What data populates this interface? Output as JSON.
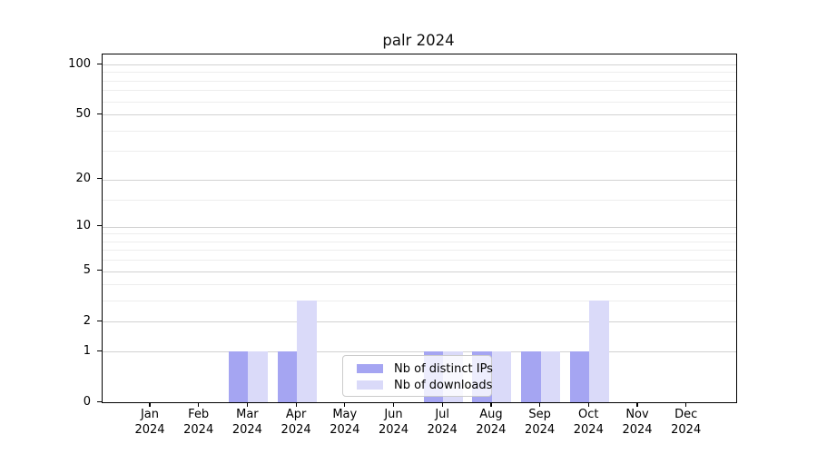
{
  "chart_data": {
    "type": "bar",
    "title": "palr 2024",
    "categories": [
      "Jan 2024",
      "Feb 2024",
      "Mar 2024",
      "Apr 2024",
      "May 2024",
      "Jun 2024",
      "Jul 2024",
      "Aug 2024",
      "Sep 2024",
      "Oct 2024",
      "Nov 2024",
      "Dec 2024"
    ],
    "series": [
      {
        "name": "Nb of distinct IPs",
        "color": "#a5a5f2",
        "values": [
          0,
          0,
          1,
          1,
          0,
          0,
          1,
          1,
          1,
          1,
          0,
          0
        ]
      },
      {
        "name": "Nb of downloads",
        "color": "#dadaf9",
        "values": [
          0,
          0,
          1,
          3,
          0,
          0,
          1,
          1,
          1,
          3,
          0,
          0
        ]
      }
    ],
    "xlabel": "",
    "ylabel": "",
    "yscale": "log1p",
    "ylim": [
      0,
      110
    ],
    "y_major_ticks": [
      0,
      1,
      2,
      5,
      10,
      20,
      50,
      100
    ],
    "y_minor_ticks": [
      3,
      4,
      6,
      7,
      8,
      9,
      15,
      30,
      40,
      60,
      70,
      80,
      90
    ],
    "grid": true,
    "legend_position": "lower center"
  },
  "colors": {
    "grid_major": "#d2d2d2",
    "grid_minor": "#ededed",
    "frame": "#000000",
    "background": "#ffffff"
  }
}
